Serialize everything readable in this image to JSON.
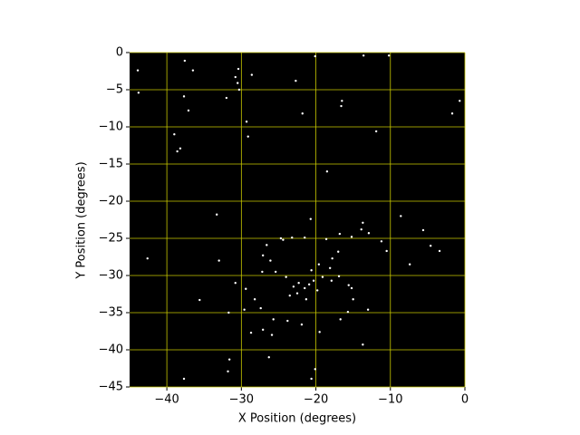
{
  "chart_data": {
    "type": "scatter",
    "xlabel": "X Position (degrees)",
    "ylabel": "Y Position (degrees)",
    "xlim": [
      -45,
      0
    ],
    "ylim": [
      -45,
      0
    ],
    "xticks": [
      {
        "value": -40,
        "label": "−40"
      },
      {
        "value": -30,
        "label": "−30"
      },
      {
        "value": -20,
        "label": "−20"
      },
      {
        "value": -10,
        "label": "−10"
      },
      0
    ],
    "yticks": [
      0,
      {
        "value": -5,
        "label": "−5"
      },
      {
        "value": -10,
        "label": "−10"
      },
      {
        "value": -15,
        "label": "−15"
      },
      {
        "value": -20,
        "label": "−20"
      },
      {
        "value": -25,
        "label": "−25"
      },
      {
        "value": -30,
        "label": "−30"
      },
      {
        "value": -35,
        "label": "−35"
      },
      {
        "value": -40,
        "label": "−40"
      },
      {
        "value": -45,
        "label": "−45"
      }
    ],
    "grid": true,
    "grid_color": "#c8c800",
    "background": "#000000",
    "color": "#ffffff",
    "x": [
      -43.9,
      -43.8,
      -37.6,
      -36.5,
      -37.7,
      -37.1,
      -39.0,
      -38.2,
      -38.6,
      -30.4,
      -30.8,
      -30.5,
      -30.3,
      -32.0,
      -28.6,
      -29.3,
      -29.1,
      -22.7,
      -20.1,
      -21.8,
      -16.5,
      -16.6,
      -13.6,
      -10.2,
      -11.9,
      -1.7,
      -0.7,
      -18.5,
      -33.3,
      -8.6,
      -5.6,
      -4.6,
      -3.4,
      -7.4,
      -10.5,
      -42.6,
      -33.0,
      -35.6,
      -30.8,
      -31.7,
      -31.6,
      -31.8,
      -37.7,
      -26.3,
      -20.6,
      -20.1,
      -26.6,
      -24.7,
      -23.2,
      -24.4,
      -21.5,
      -20.7,
      -18.6,
      -16.8,
      -15.2,
      -13.7,
      -13.9,
      -12.9,
      -11.2,
      -17.0,
      -17.8,
      -18.1,
      -16.9,
      -15.6,
      -15.2,
      -15.0,
      -13.0,
      -13.7,
      -19.5,
      -21.9,
      -23.8,
      -25.7,
      -27.4,
      -28.2,
      -28.7,
      -29.6,
      -27.2,
      -26.1,
      -25.4,
      -24.0,
      -23.0,
      -22.3,
      -21.5,
      -20.9,
      -20.3,
      -19.8,
      -22.5,
      -23.5,
      -21.3,
      -20.6,
      -19.1,
      -17.9,
      -19.6,
      -27.1,
      -29.4,
      -15.7,
      -16.7,
      -25.9,
      -27.1
    ],
    "y": [
      -2.4,
      -5.4,
      -1.1,
      -2.4,
      -5.9,
      -7.8,
      -11.0,
      -12.9,
      -13.3,
      -2.2,
      -3.3,
      -4.1,
      -5.0,
      -6.1,
      -3.0,
      -9.3,
      -11.3,
      -3.8,
      -0.5,
      -8.2,
      -6.5,
      -7.2,
      -0.4,
      -0.4,
      -10.6,
      -8.2,
      -6.5,
      -16.0,
      -21.8,
      -22.0,
      -23.9,
      -26.0,
      -26.7,
      -28.5,
      -26.7,
      -27.7,
      -28.0,
      -33.3,
      -31.0,
      -35.0,
      -41.3,
      -42.9,
      -43.9,
      -41.0,
      -43.9,
      -42.6,
      -25.9,
      -25.0,
      -24.9,
      -25.2,
      -24.9,
      -22.4,
      -25.1,
      -24.4,
      -24.8,
      -22.9,
      -23.8,
      -24.3,
      -25.4,
      -26.8,
      -27.7,
      -29.0,
      -30.1,
      -31.3,
      -31.7,
      -33.2,
      -34.6,
      -39.3,
      -37.6,
      -36.6,
      -36.1,
      -35.9,
      -34.4,
      -33.2,
      -37.7,
      -34.6,
      -29.5,
      -28.0,
      -29.5,
      -30.2,
      -31.5,
      -31.0,
      -31.7,
      -31.2,
      -30.7,
      -32.0,
      -32.4,
      -32.7,
      -33.2,
      -29.3,
      -30.2,
      -30.7,
      -28.5,
      -27.3,
      -31.8,
      -34.9,
      -35.9,
      -38.0,
      -37.3
    ]
  }
}
